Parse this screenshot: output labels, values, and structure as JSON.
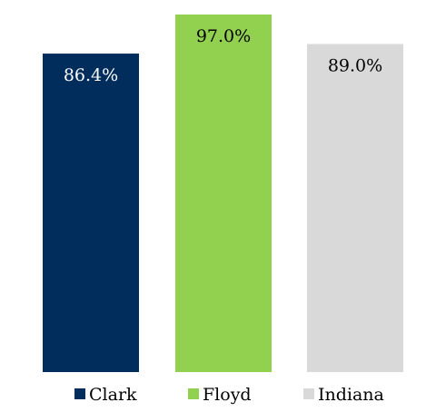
{
  "chart_data": {
    "type": "bar",
    "categories": [
      "Clark",
      "Floyd",
      "Indiana"
    ],
    "values": [
      86.4,
      97.0,
      89.0
    ],
    "value_labels": [
      "86.4%",
      "97.0%",
      "89.0%"
    ],
    "colors": [
      "#002d5c",
      "#92d050",
      "#d9d9d9"
    ],
    "label_colors": [
      "#ffffff",
      "#000000",
      "#000000"
    ],
    "title": "",
    "xlabel": "",
    "ylabel": "",
    "ylim": [
      0,
      97.0
    ],
    "grid": false,
    "legend": {
      "placement": "bottom",
      "entries": [
        "Clark",
        "Floyd",
        "Indiana"
      ]
    }
  }
}
